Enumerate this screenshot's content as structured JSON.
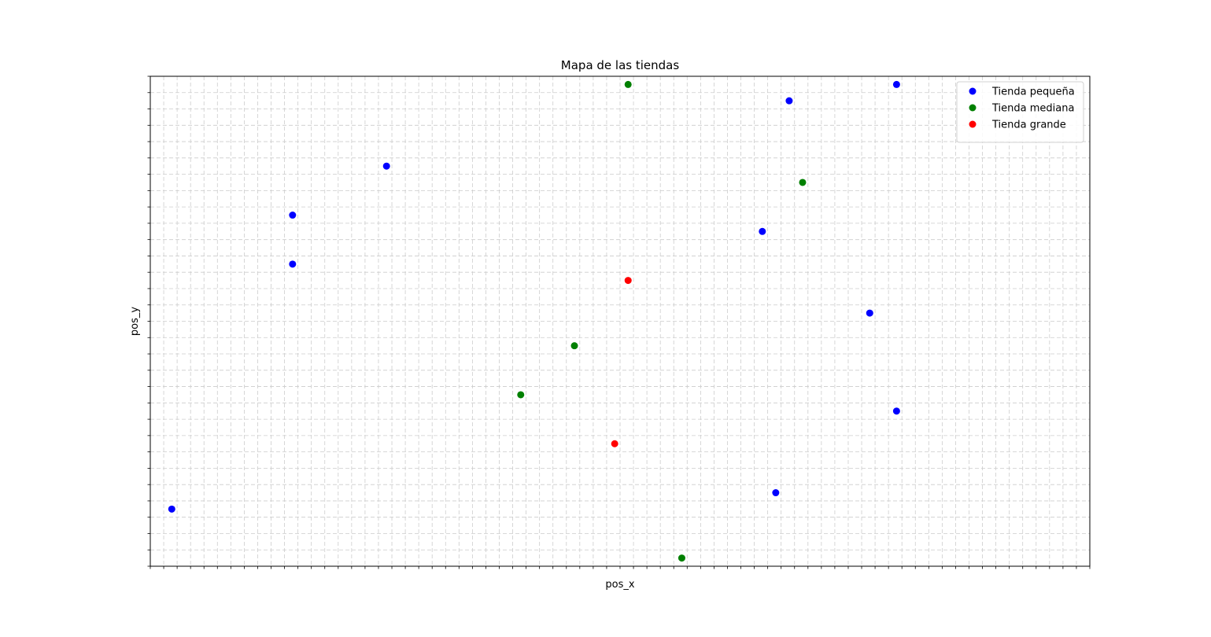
{
  "chart_data": {
    "type": "scatter",
    "title": "Mapa de las tiendas",
    "xlabel": "pos_x",
    "ylabel": "pos_y",
    "xlim": [
      0,
      70
    ],
    "ylim": [
      0,
      30
    ],
    "grid": true,
    "minor_ticks": true,
    "tick_labels_visible": false,
    "legend_position": "upper-right",
    "series": [
      {
        "name": "Tienda pequeña",
        "color": "#0000ff",
        "points": [
          [
            1.6,
            3.5
          ],
          [
            10.6,
            18.5
          ],
          [
            10.6,
            21.5
          ],
          [
            17.6,
            24.5
          ],
          [
            45.6,
            20.5
          ],
          [
            46.6,
            4.5
          ],
          [
            47.6,
            28.5
          ],
          [
            53.6,
            15.5
          ],
          [
            55.6,
            9.5
          ],
          [
            55.6,
            29.5
          ]
        ]
      },
      {
        "name": "Tienda mediana",
        "color": "#008000",
        "points": [
          [
            27.6,
            10.5
          ],
          [
            31.6,
            13.5
          ],
          [
            35.6,
            29.5
          ],
          [
            39.6,
            0.5
          ],
          [
            48.6,
            23.5
          ]
        ]
      },
      {
        "name": "Tienda grande",
        "color": "#ff0000",
        "points": [
          [
            34.6,
            7.5
          ],
          [
            35.6,
            17.5
          ]
        ]
      }
    ]
  }
}
